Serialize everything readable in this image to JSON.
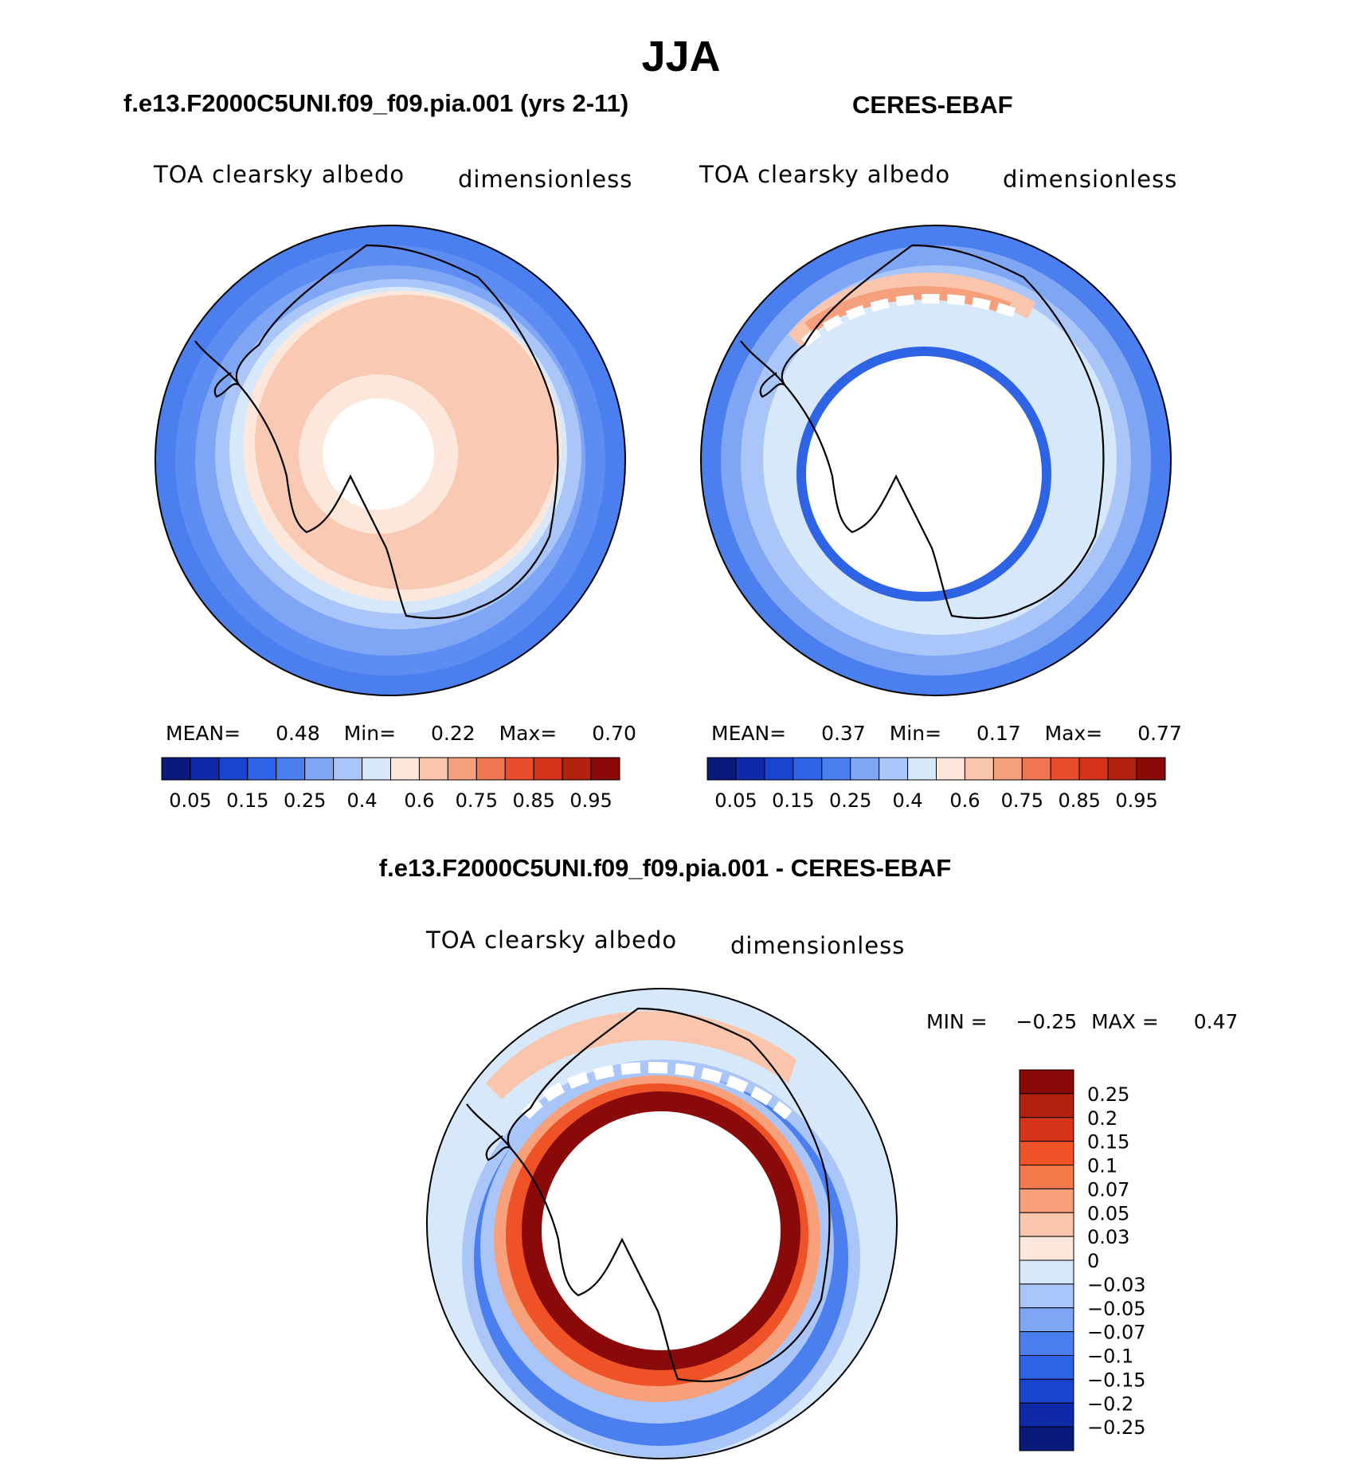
{
  "page_title": "JJA",
  "panels": [
    {
      "case": "f.e13.F2000C5UNI.f09_f09.pia.001 (yrs 2-11)",
      "variable": "TOA clearsky albedo",
      "units": "dimensionless",
      "stats": {
        "mean_label": "MEAN=",
        "mean": "0.48",
        "min_label": "Min=",
        "min": "0.22",
        "max_label": "Max=",
        "max": "0.70"
      }
    },
    {
      "case": "CERES-EBAF",
      "variable": "TOA clearsky albedo",
      "units": "dimensionless",
      "stats": {
        "mean_label": "MEAN=",
        "mean": "0.37",
        "min_label": "Min=",
        "min": "0.17",
        "max_label": "Max=",
        "max": "0.77"
      }
    }
  ],
  "abs_colorbar": {
    "colors": [
      "#0a1a7a",
      "#0f2aa8",
      "#1a44cf",
      "#2e63e6",
      "#4b7ff0",
      "#7fa5f5",
      "#aac6f8",
      "#d8e8fb",
      "#fde7da",
      "#f9c5ac",
      "#f59f7c",
      "#ee7651",
      "#e84e2e",
      "#d6341a",
      "#b3210f",
      "#8a0a0a"
    ],
    "tick_labels": [
      "0.05",
      "0.15",
      "0.25",
      "0.4",
      "0.6",
      "0.75",
      "0.85",
      "0.95"
    ]
  },
  "diff_panel": {
    "title": "f.e13.F2000C5UNI.f09_f09.pia.001 - CERES-EBAF",
    "variable": "TOA clearsky albedo",
    "units": "dimensionless",
    "min_max": {
      "min_label": "MIN =",
      "min": "−0.25",
      "max_label": "MAX =",
      "max": "0.47"
    }
  },
  "diff_colorbar": {
    "colors": [
      "#8a0a0a",
      "#b3210f",
      "#d6341a",
      "#ee5226",
      "#f47a4c",
      "#f7a07a",
      "#f9c5ac",
      "#fde7da",
      "#d8e8fb",
      "#aac6f8",
      "#7fa5f5",
      "#4b7ff0",
      "#2e63e6",
      "#1a44cf",
      "#0f2aa8",
      "#0a1a7a"
    ],
    "tick_labels": [
      "0.25",
      "0.2",
      "0.15",
      "0.1",
      "0.07",
      "0.05",
      "0.03",
      "0",
      "−0.03",
      "−0.05",
      "−0.07",
      "−0.1",
      "−0.15",
      "−0.2",
      "−0.25"
    ]
  }
}
